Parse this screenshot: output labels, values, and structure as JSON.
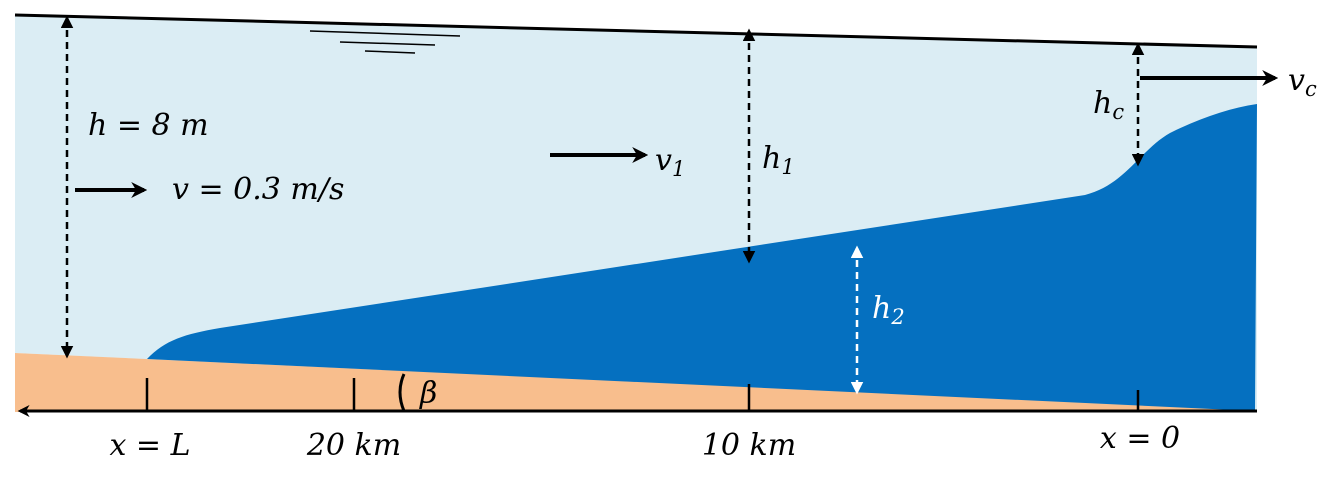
{
  "labels": {
    "depth": "h = 8 m",
    "velocity": "v = 0.3 m/s",
    "v1": {
      "base": "v",
      "sub": "1"
    },
    "h1": {
      "base": "h",
      "sub": "1"
    },
    "h2": {
      "base": "h",
      "sub": "2"
    },
    "hc": {
      "base": "h",
      "sub": "c"
    },
    "vc": {
      "base": "v",
      "sub": "c"
    },
    "angle": "β"
  },
  "axis": {
    "ticks": [
      "x = L",
      "20 km",
      "10 km",
      "x = 0"
    ]
  }
}
